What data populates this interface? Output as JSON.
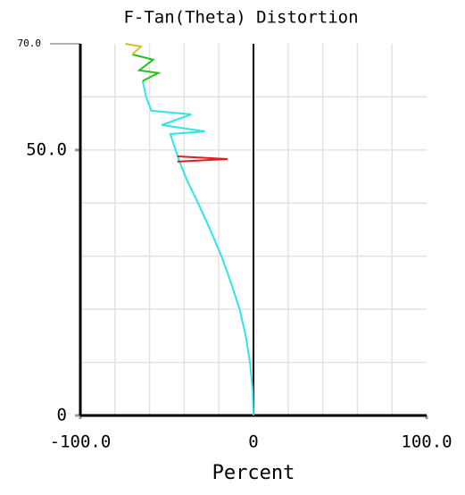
{
  "chart_data": {
    "type": "line",
    "title": "F-Tan(Theta) Distortion",
    "xlabel": "Percent",
    "xlim": [
      -100,
      100
    ],
    "ylim": [
      0,
      70
    ],
    "xticks": [
      {
        "value": -100,
        "label": "-100.0"
      },
      0,
      {
        "value": 100,
        "label": "100.0"
      }
    ],
    "yticks": [
      0,
      {
        "value": 50,
        "label": "50.0"
      },
      {
        "value": 70,
        "label": "70.0"
      }
    ],
    "xgrid": [
      -80,
      -60,
      -40,
      -20,
      20,
      40,
      60,
      80
    ],
    "ygrid": [
      10,
      20,
      30,
      40,
      50,
      60
    ],
    "grid": true,
    "series": [
      {
        "color": "#2ee6e6",
        "x": [
          0,
          -0.5,
          -2,
          -4.5,
          -8,
          -13,
          -18.5,
          -25,
          -32,
          -38,
          -43,
          -45,
          -48,
          -28,
          -53,
          -36,
          -59,
          -62,
          -64
        ],
        "y": [
          0,
          5,
          10,
          15,
          20,
          25,
          30,
          35,
          40,
          44,
          48,
          50,
          53,
          53.5,
          54.7,
          56.7,
          57.4,
          60,
          63
        ]
      },
      {
        "color": "#e02020",
        "x": [
          -44,
          -15,
          -44
        ],
        "y": [
          47.8,
          48.3,
          48.8
        ]
      },
      {
        "color": "#22c022",
        "x": [
          -64,
          -55,
          -66,
          -58,
          -70
        ],
        "y": [
          63,
          64.5,
          65,
          67,
          68
        ]
      },
      {
        "color": "#d8c020",
        "x": [
          -70,
          -65,
          -74
        ],
        "y": [
          68,
          69.5,
          70
        ]
      }
    ]
  }
}
